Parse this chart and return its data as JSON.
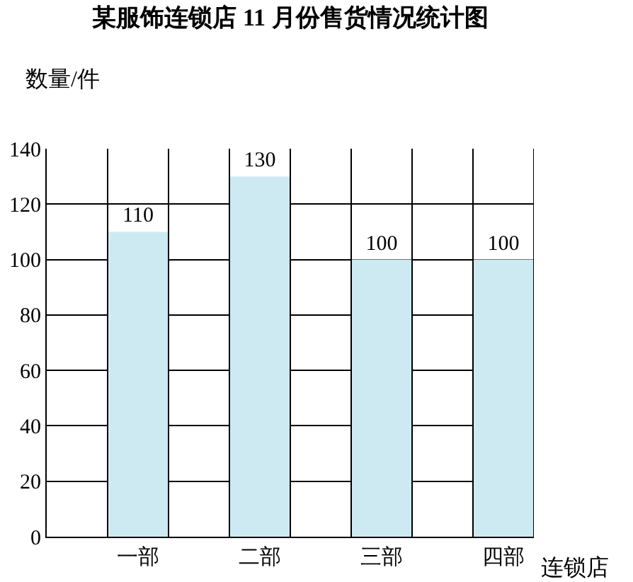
{
  "chart_data": {
    "type": "bar",
    "title": "某服饰连锁店 11 月份售货情况统计图",
    "xlabel": "连锁店",
    "ylabel": "数量/件",
    "categories": [
      "一部",
      "二部",
      "三部",
      "四部"
    ],
    "values": [
      110,
      130,
      100,
      100
    ],
    "color": "#cdeaf2",
    "data_labels": true,
    "ylim": [
      0,
      140
    ],
    "yticks": [
      0,
      20,
      40,
      60,
      80,
      100,
      120,
      140
    ],
    "grid": true
  }
}
